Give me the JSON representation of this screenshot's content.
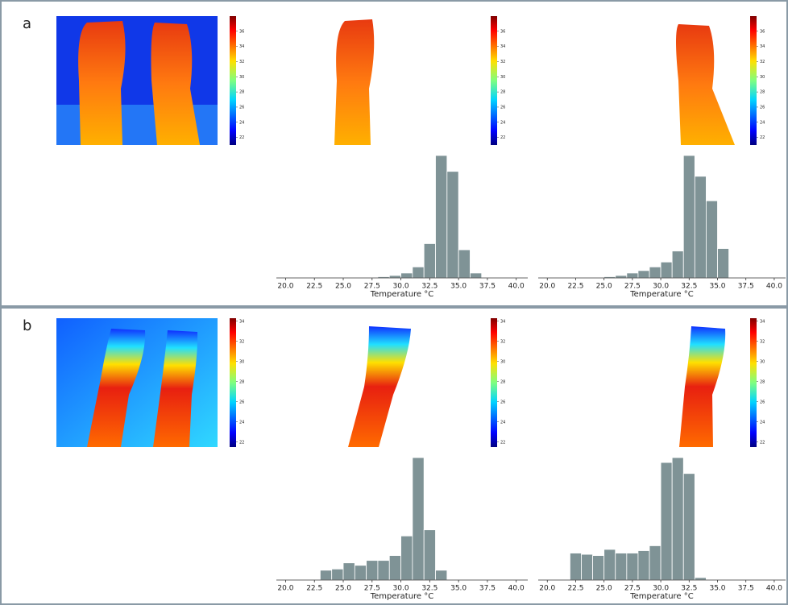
{
  "panels": [
    {
      "label": "a",
      "colorbar_lim": [
        21,
        38
      ],
      "colorbar_ticks": [
        22,
        24,
        26,
        28,
        30,
        32,
        34,
        36
      ]
    },
    {
      "label": "b",
      "colorbar_lim": [
        21.5,
        34.3
      ],
      "colorbar_ticks": [
        22,
        24,
        26,
        28,
        30,
        32,
        34
      ]
    }
  ],
  "chart_data": [
    {
      "type": "histogram",
      "color": "#7f9396",
      "xlabel": "Temperature °C",
      "bins": [
        28,
        29,
        30,
        31,
        32,
        33,
        34,
        35,
        36,
        37
      ],
      "values": [
        1,
        2,
        4,
        9,
        28,
        100,
        87,
        23,
        4
      ],
      "xlim": [
        19.2,
        41
      ],
      "ylim": [
        0,
        100
      ],
      "xticks": [
        {
          "value": 20,
          "label": "20.0"
        },
        {
          "value": 22.5,
          "label": "22.5"
        },
        {
          "value": 25,
          "label": "25.0"
        },
        {
          "value": 27.5,
          "label": "27.5"
        },
        {
          "value": 30,
          "label": "30.0"
        },
        {
          "value": 32.5,
          "label": "32.5"
        },
        {
          "value": 35,
          "label": "35.0"
        },
        {
          "value": 37.5,
          "label": "37.5"
        },
        {
          "value": 40,
          "label": "40.0"
        }
      ]
    },
    {
      "type": "histogram",
      "color": "#7f9396",
      "xlabel": "Temperature °C",
      "bins": [
        25,
        26,
        27,
        28,
        29,
        30,
        31,
        32,
        33,
        34,
        35,
        36
      ],
      "values": [
        1,
        2,
        4,
        6,
        9,
        13,
        22,
        100,
        83,
        63,
        24
      ],
      "xlim": [
        19.2,
        41
      ],
      "ylim": [
        0,
        100
      ],
      "xticks": [
        {
          "value": 20,
          "label": "20.0"
        },
        {
          "value": 22.5,
          "label": "22.5"
        },
        {
          "value": 25,
          "label": "25.0"
        },
        {
          "value": 27.5,
          "label": "27.5"
        },
        {
          "value": 30,
          "label": "30.0"
        },
        {
          "value": 32.5,
          "label": "32.5"
        },
        {
          "value": 35,
          "label": "35.0"
        },
        {
          "value": 37.5,
          "label": "37.5"
        },
        {
          "value": 40,
          "label": "40.0"
        }
      ]
    },
    {
      "type": "histogram",
      "color": "#7f9396",
      "xlabel": "Temperature °C",
      "bins": [
        23,
        24,
        25,
        26,
        27,
        28,
        29,
        30,
        31,
        32,
        33,
        34
      ],
      "values": [
        8,
        9,
        14,
        12,
        16,
        16,
        20,
        36,
        100,
        41,
        8
      ],
      "xlim": [
        19.2,
        41
      ],
      "ylim": [
        0,
        100
      ],
      "xticks": [
        {
          "value": 20,
          "label": "20.0"
        },
        {
          "value": 22.5,
          "label": "22.5"
        },
        {
          "value": 25,
          "label": "25.0"
        },
        {
          "value": 27.5,
          "label": "27.5"
        },
        {
          "value": 30,
          "label": "30.0"
        },
        {
          "value": 32.5,
          "label": "32.5"
        },
        {
          "value": 35,
          "label": "35.0"
        },
        {
          "value": 37.5,
          "label": "37.5"
        },
        {
          "value": 40,
          "label": "40.0"
        }
      ]
    },
    {
      "type": "histogram",
      "color": "#7f9396",
      "xlabel": "Temperature °C",
      "bins": [
        22,
        23,
        24,
        25,
        26,
        27,
        28,
        29,
        30,
        31,
        32,
        33,
        34
      ],
      "values": [
        22,
        21,
        20,
        25,
        22,
        22,
        24,
        28,
        96,
        100,
        87,
        2
      ],
      "xlim": [
        19.2,
        41
      ],
      "ylim": [
        0,
        100
      ],
      "xticks": [
        {
          "value": 20,
          "label": "20.0"
        },
        {
          "value": 22.5,
          "label": "22.5"
        },
        {
          "value": 25,
          "label": "25.0"
        },
        {
          "value": 27.5,
          "label": "27.5"
        },
        {
          "value": 30,
          "label": "30.0"
        },
        {
          "value": 32.5,
          "label": "32.5"
        },
        {
          "value": 35,
          "label": "35.0"
        },
        {
          "value": 37.5,
          "label": "37.5"
        },
        {
          "value": 40,
          "label": "40.0"
        }
      ]
    }
  ]
}
